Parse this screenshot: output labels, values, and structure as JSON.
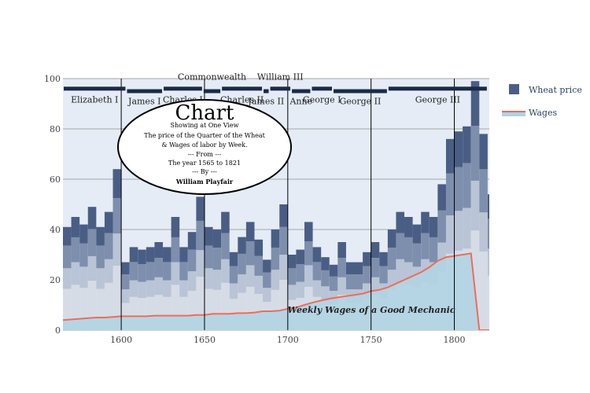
{
  "chart_data": {
    "type": "bar",
    "x_range": [
      1565,
      1821
    ],
    "ylim": [
      0,
      100
    ],
    "x_ticks": [
      1600,
      1650,
      1700,
      1750,
      1800
    ],
    "y_ticks": [
      0,
      20,
      40,
      60,
      80,
      100
    ],
    "grid": true,
    "legend_position": "top-right",
    "bar_width_years": 5,
    "series": [
      {
        "name": "Wheat price",
        "type": "bar",
        "color": "#4a5e85",
        "x": [
          1565,
          1570,
          1575,
          1580,
          1585,
          1590,
          1595,
          1600,
          1605,
          1610,
          1615,
          1620,
          1625,
          1630,
          1635,
          1640,
          1645,
          1650,
          1655,
          1660,
          1665,
          1670,
          1675,
          1680,
          1685,
          1690,
          1695,
          1700,
          1705,
          1710,
          1715,
          1720,
          1725,
          1730,
          1735,
          1740,
          1745,
          1750,
          1755,
          1760,
          1765,
          1770,
          1775,
          1780,
          1785,
          1790,
          1795,
          1800,
          1805,
          1810,
          1815,
          1820
        ],
        "y": [
          41,
          45,
          42,
          49,
          41,
          47,
          64,
          27,
          33,
          32,
          33,
          35,
          33,
          45,
          33,
          39,
          53,
          41,
          40,
          47,
          31,
          37,
          43,
          36,
          28,
          40,
          50,
          30,
          32,
          43,
          33,
          29,
          26,
          35,
          27,
          27,
          31,
          35,
          31,
          40,
          47,
          45,
          42,
          47,
          45,
          58,
          76,
          79,
          81,
          99,
          78,
          54
        ]
      },
      {
        "name": "Wages",
        "type": "area",
        "color": "#ef6c57",
        "x": [
          1565,
          1570,
          1575,
          1580,
          1585,
          1590,
          1595,
          1600,
          1605,
          1610,
          1615,
          1620,
          1625,
          1630,
          1635,
          1640,
          1645,
          1650,
          1655,
          1660,
          1665,
          1670,
          1675,
          1680,
          1685,
          1690,
          1695,
          1700,
          1705,
          1710,
          1715,
          1720,
          1725,
          1730,
          1735,
          1740,
          1745,
          1750,
          1755,
          1760,
          1765,
          1770,
          1775,
          1780,
          1785,
          1790,
          1795,
          1800,
          1805,
          1810,
          1815,
          1821
        ],
        "y": [
          4.0,
          4.25,
          4.5,
          4.75,
          5.0,
          5.0,
          5.25,
          5.5,
          5.5,
          5.5,
          5.5,
          5.75,
          5.75,
          5.75,
          5.75,
          5.75,
          6.0,
          6.0,
          6.5,
          6.5,
          6.5,
          6.75,
          6.75,
          7.0,
          7.5,
          7.5,
          7.75,
          8.5,
          9.0,
          10.0,
          11.0,
          11.75,
          12.5,
          13.0,
          13.5,
          14.0,
          14.5,
          15.5,
          16.0,
          17.0,
          18.5,
          20.0,
          21.5,
          23.0,
          25.0,
          27.5,
          29.0,
          29.5,
          30.0,
          30.5,
          0.0,
          0.0
        ]
      }
    ],
    "monarchs": [
      {
        "name": "Elizabeth I",
        "start": 1565,
        "end": 1603,
        "row": 0
      },
      {
        "name": "James I",
        "start": 1603,
        "end": 1625,
        "row": 1
      },
      {
        "name": "Charles I",
        "start": 1625,
        "end": 1649,
        "row": 0
      },
      {
        "name": "Commonwealth",
        "start": 1649,
        "end": 1660,
        "row": 1
      },
      {
        "name": "Charles II",
        "start": 1660,
        "end": 1685,
        "row": 0
      },
      {
        "name": "James II",
        "start": 1685,
        "end": 1689,
        "row": 1
      },
      {
        "name": "William III",
        "start": 1689,
        "end": 1702,
        "row": 0
      },
      {
        "name": "Anne",
        "start": 1702,
        "end": 1714,
        "row": 1
      },
      {
        "name": "George I",
        "start": 1714,
        "end": 1727,
        "row": 0
      },
      {
        "name": "George II",
        "start": 1727,
        "end": 1760,
        "row": 1
      },
      {
        "name": "George III",
        "start": 1760,
        "end": 1820,
        "row": 0
      }
    ],
    "reign_lines": [
      1600,
      1650,
      1700,
      1750,
      1800
    ],
    "annotations": {
      "cartouche_title": "Chart",
      "cartouche_lines": [
        "Showing at One View",
        "The price of the Quarter of the Wheat",
        "& Wages of labor by Week.",
        "--- From ---",
        "The year 1565 to 1821",
        "--- By ---"
      ],
      "cartouche_author": "William Playfair",
      "wages_label": "Weekly Wages of a Good Mechanic"
    },
    "legend": [
      "Wheat price",
      "Wages"
    ]
  },
  "colors": {
    "plot_bg": "#e5ecf6",
    "grid": "#a7a7a7",
    "bar_dark": "#4a5e85",
    "bar_mid": "#7d8fad",
    "bar_light": "#b9c4d6",
    "bar_pale": "#d6dce6",
    "wage_fill": "#b1d4e3",
    "wage_line": "#ef6c57",
    "monarch_bar": "#1b2a47"
  }
}
